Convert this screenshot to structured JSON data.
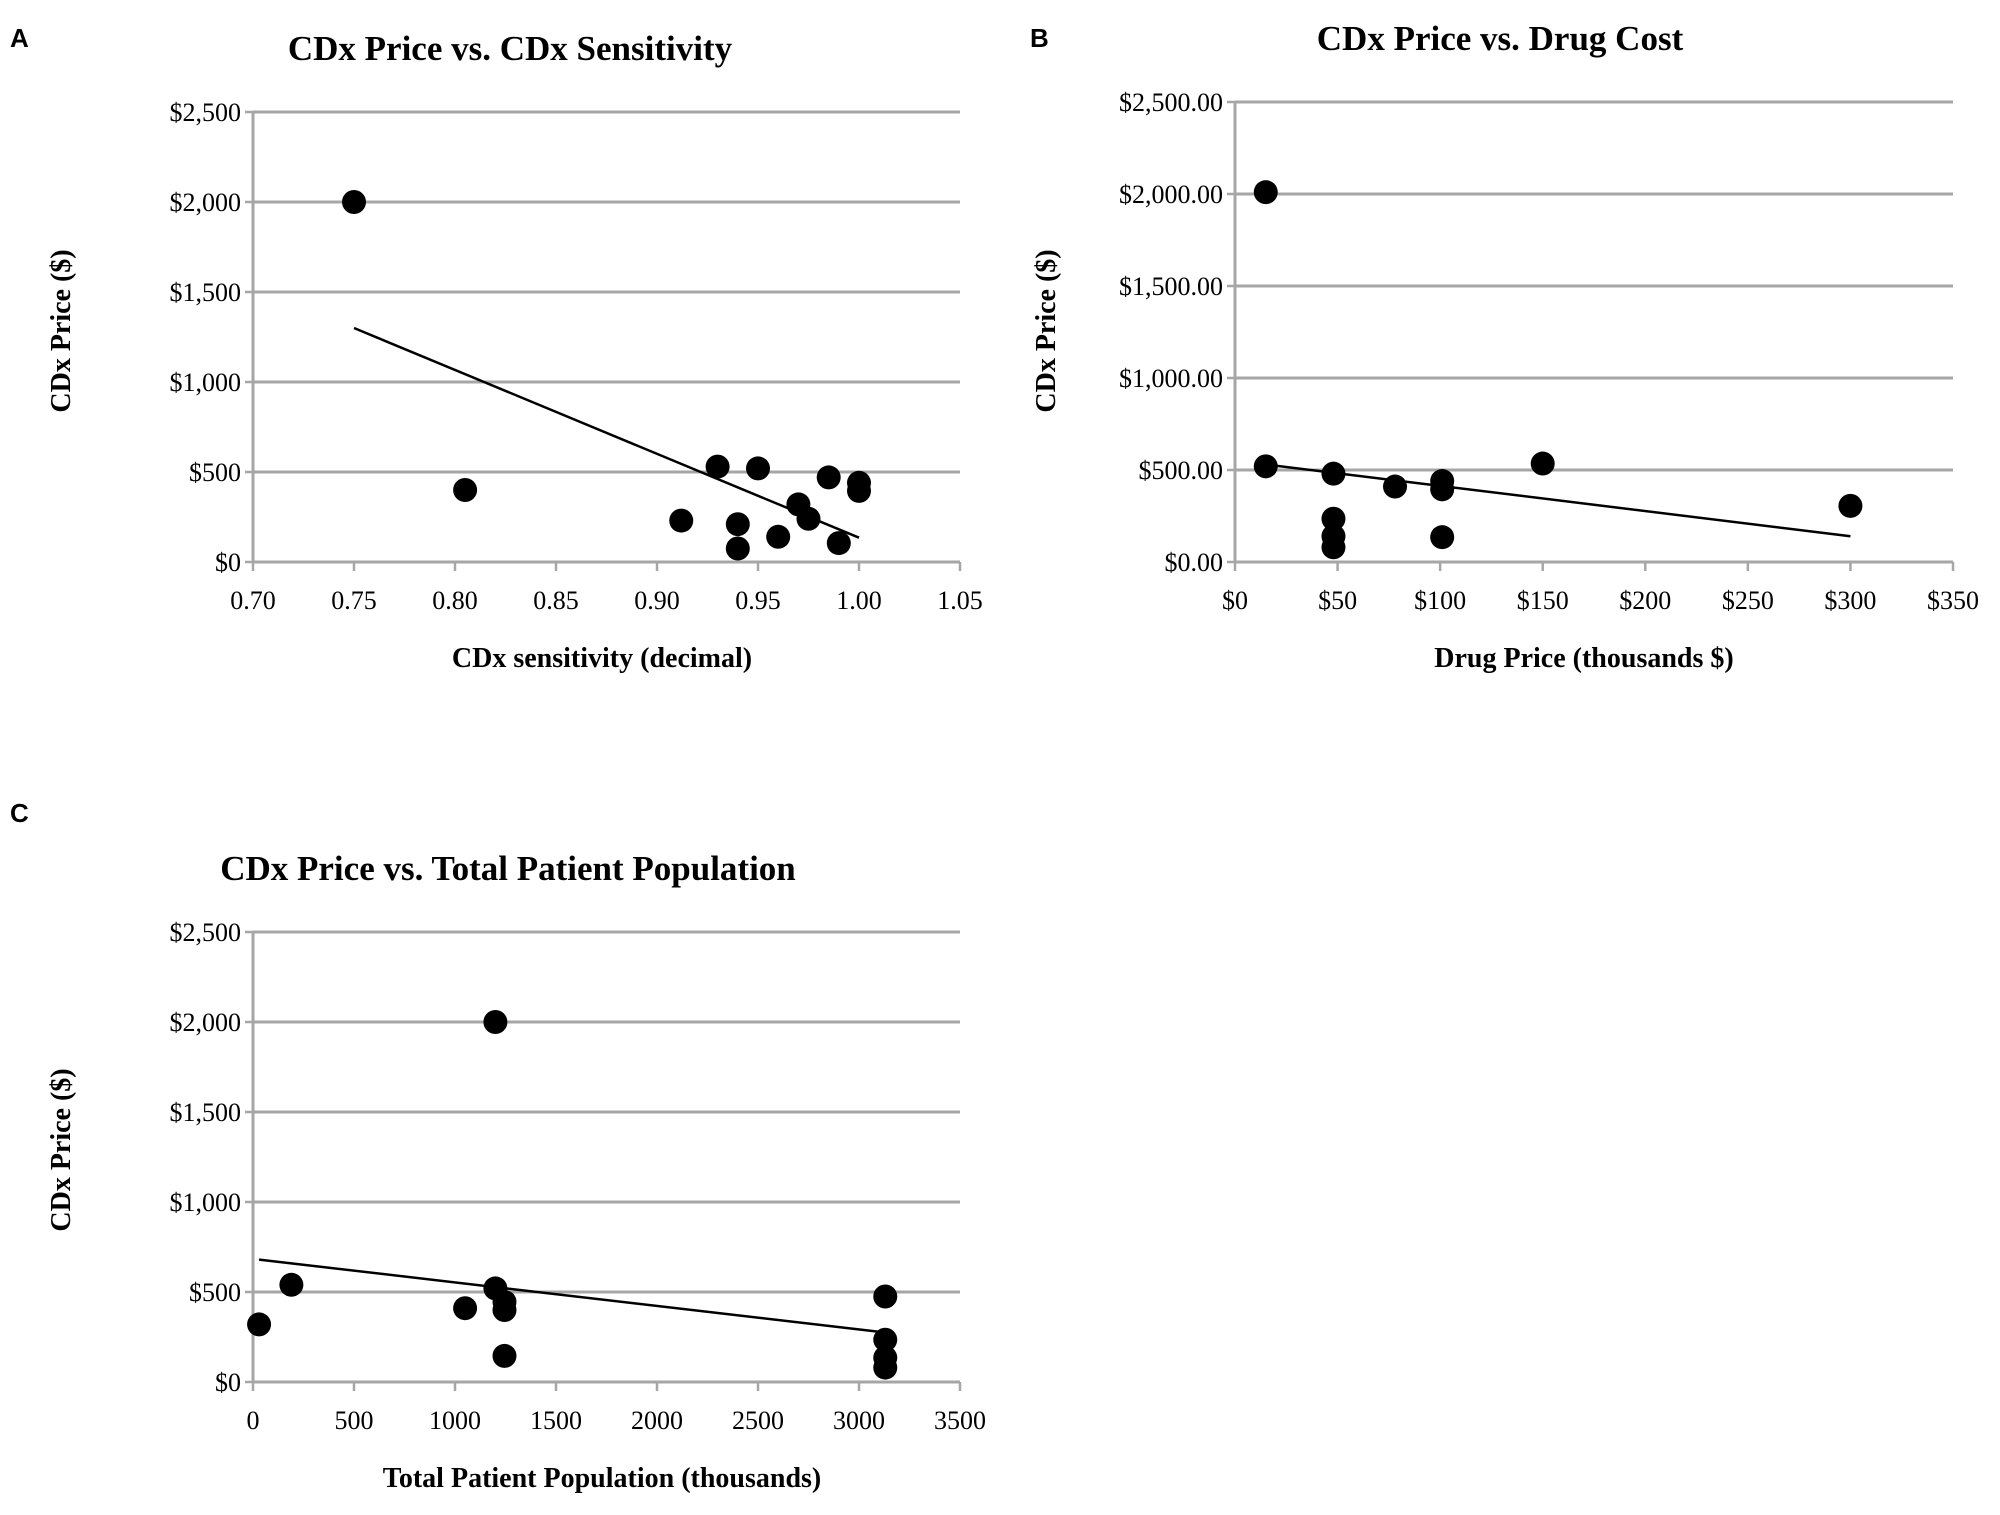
{
  "chart_data": [
    {
      "panel": "A",
      "type": "scatter",
      "title": "CDx Price vs. CDx Sensitivity",
      "xlabel": "CDx sensitivity (decimal)",
      "ylabel": "CDx Price ($)",
      "xlim": [
        0.7,
        1.05
      ],
      "ylim": [
        0,
        2500
      ],
      "xticks": [
        "0.70",
        "0.75",
        "0.80",
        "0.85",
        "0.90",
        "0.95",
        "1.00",
        "1.05"
      ],
      "yticks": [
        "$0",
        "$500",
        "$1,000",
        "$1,500",
        "$2,000",
        "$2,500"
      ],
      "points": [
        {
          "x": 0.75,
          "y": 2000
        },
        {
          "x": 0.805,
          "y": 400
        },
        {
          "x": 0.912,
          "y": 230
        },
        {
          "x": 0.93,
          "y": 530
        },
        {
          "x": 0.94,
          "y": 210
        },
        {
          "x": 0.94,
          "y": 75
        },
        {
          "x": 0.95,
          "y": 520
        },
        {
          "x": 0.96,
          "y": 140
        },
        {
          "x": 0.97,
          "y": 320
        },
        {
          "x": 0.975,
          "y": 240
        },
        {
          "x": 0.985,
          "y": 470
        },
        {
          "x": 0.99,
          "y": 105
        },
        {
          "x": 1.0,
          "y": 440
        },
        {
          "x": 1.0,
          "y": 395
        }
      ],
      "trendline": {
        "x": [
          0.75,
          1.0
        ],
        "y": [
          1300,
          135
        ]
      }
    },
    {
      "panel": "B",
      "type": "scatter",
      "title": "CDx Price vs. Drug Cost",
      "xlabel": "Drug Price (thousands $)",
      "ylabel": "CDx Price ($)",
      "xlim": [
        0,
        350
      ],
      "ylim": [
        0,
        2500
      ],
      "xticks": [
        "$0",
        "$50",
        "$100",
        "$150",
        "$200",
        "$250",
        "$300",
        "$350"
      ],
      "yticks": [
        "$0.00",
        "$500.00",
        "$1,000.00",
        "$1,500.00",
        "$2,000.00",
        "$2,500.00"
      ],
      "points": [
        {
          "x": 15,
          "y": 2010
        },
        {
          "x": 15,
          "y": 520
        },
        {
          "x": 48,
          "y": 480
        },
        {
          "x": 48,
          "y": 235
        },
        {
          "x": 48,
          "y": 140
        },
        {
          "x": 48,
          "y": 80
        },
        {
          "x": 78,
          "y": 410
        },
        {
          "x": 101,
          "y": 440
        },
        {
          "x": 101,
          "y": 395
        },
        {
          "x": 101,
          "y": 135
        },
        {
          "x": 150,
          "y": 535
        },
        {
          "x": 300,
          "y": 305
        }
      ],
      "trendline": {
        "x": [
          15,
          300
        ],
        "y": [
          530,
          140
        ]
      }
    },
    {
      "panel": "C",
      "type": "scatter",
      "title": "CDx Price vs. Total Patient Population",
      "xlabel": "Total Patient Population (thousands)",
      "ylabel": "CDx Price ($)",
      "xlim": [
        0,
        3500
      ],
      "ylim": [
        0,
        2500
      ],
      "xticks": [
        "0",
        "500",
        "1000",
        "1500",
        "2000",
        "2500",
        "3000",
        "3500"
      ],
      "yticks": [
        "$0",
        "$500",
        "$1,000",
        "$1,500",
        "$2,000",
        "$2,500"
      ],
      "points": [
        {
          "x": 30,
          "y": 320
        },
        {
          "x": 190,
          "y": 540
        },
        {
          "x": 1050,
          "y": 410
        },
        {
          "x": 1200,
          "y": 2000
        },
        {
          "x": 1200,
          "y": 520
        },
        {
          "x": 1245,
          "y": 445
        },
        {
          "x": 1245,
          "y": 400
        },
        {
          "x": 1245,
          "y": 145
        },
        {
          "x": 3130,
          "y": 475
        },
        {
          "x": 3130,
          "y": 235
        },
        {
          "x": 3130,
          "y": 135
        },
        {
          "x": 3130,
          "y": 80
        }
      ],
      "trendline": {
        "x": [
          30,
          3130
        ],
        "y": [
          680,
          275
        ]
      }
    }
  ]
}
